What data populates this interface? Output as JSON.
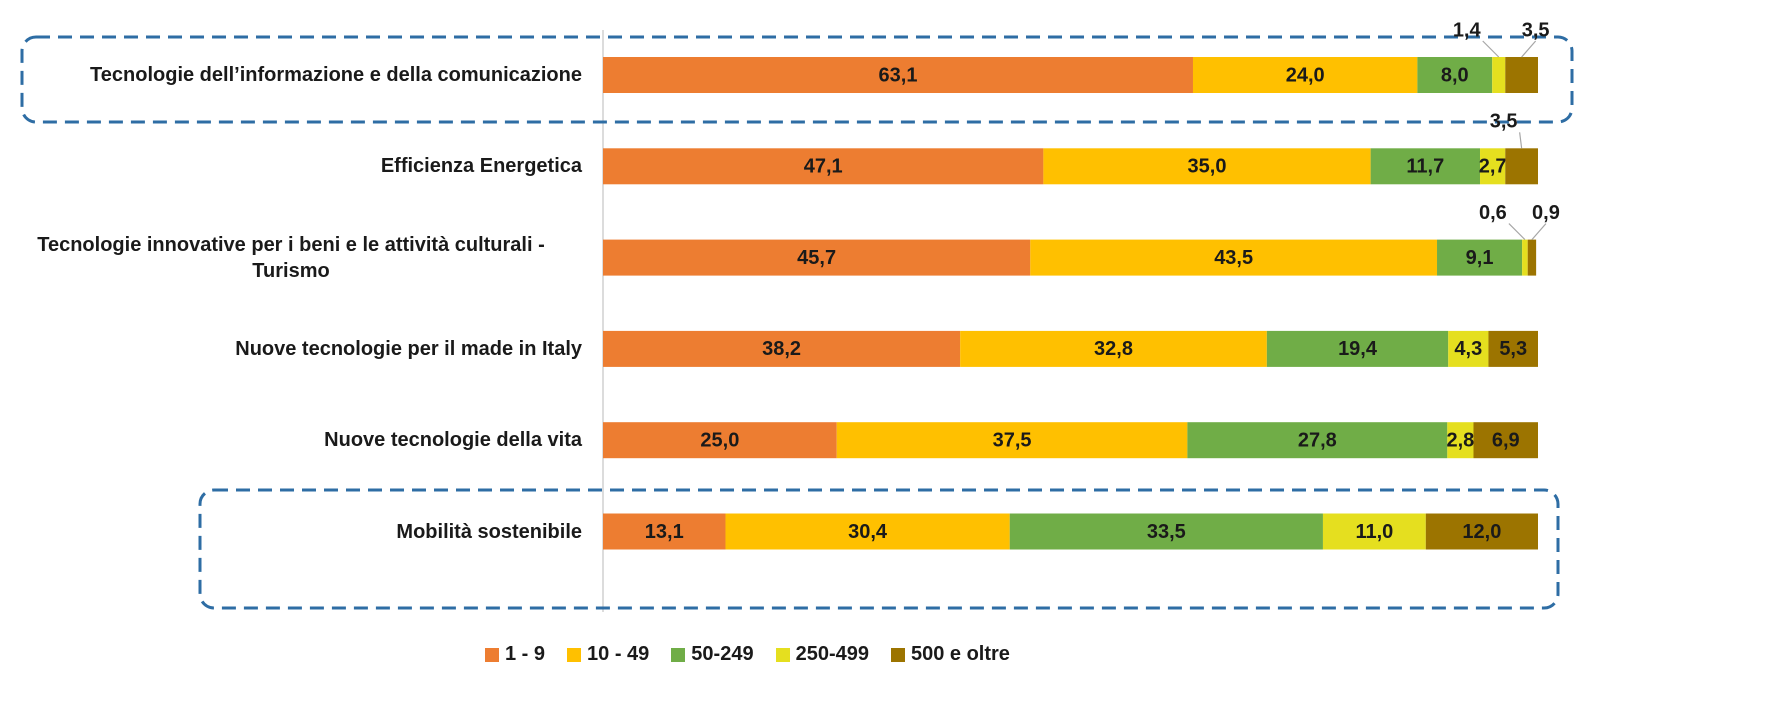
{
  "chart_data": {
    "type": "stacked-bar-horizontal",
    "categories": [
      "Tecnologie dell’informazione e della comunicazione",
      "Efficienza Energetica",
      "Tecnologie innovative per i beni e le attività culturali - Turismo",
      "Nuove tecnologie per il made in Italy",
      "Nuove tecnologie della vita",
      "Mobilità sostenibile"
    ],
    "xlim": [
      0,
      100
    ],
    "legend": "bottom",
    "series": [
      {
        "name": "1 - 9",
        "color": "#ED7D31",
        "values": [
          63.1,
          47.1,
          45.7,
          38.2,
          25.0,
          13.1
        ],
        "value_labels": [
          "63,1",
          "47,1",
          "45,7",
          "38,2",
          "25,0",
          "13,1"
        ]
      },
      {
        "name": "10 - 49",
        "color": "#FFC000",
        "values": [
          24.0,
          35.0,
          43.5,
          32.8,
          37.5,
          30.4
        ],
        "value_labels": [
          "24,0",
          "35,0",
          "43,5",
          "32,8",
          "37,5",
          "30,4"
        ]
      },
      {
        "name": "50-249",
        "color": "#70AD47",
        "values": [
          8.0,
          11.7,
          9.1,
          19.4,
          27.8,
          33.5
        ],
        "value_labels": [
          "8,0",
          "11,7",
          "9,1",
          "19,4",
          "27,8",
          "33,5"
        ]
      },
      {
        "name": "250-499",
        "color": "#E5DF1F",
        "values": [
          1.4,
          2.7,
          0.6,
          4.3,
          2.8,
          11.0
        ],
        "value_labels": [
          "1,4",
          "2,7",
          "0,6",
          "4,3",
          "2,8",
          "11,0"
        ]
      },
      {
        "name": "500 e oltre",
        "color": "#9C7400",
        "values": [
          3.5,
          3.5,
          0.9,
          5.3,
          6.9,
          12.0
        ],
        "value_labels": [
          "3,5",
          "3,5",
          "0,9",
          "5,3",
          "6,9",
          "12,0"
        ]
      }
    ]
  }
}
